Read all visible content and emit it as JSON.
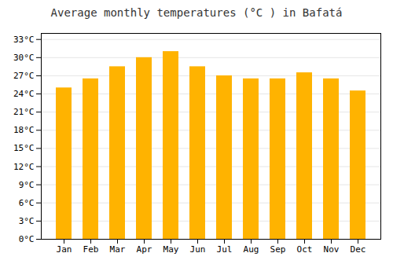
{
  "chart_data": {
    "type": "bar",
    "title": "Average monthly temperatures (°C ) in Bafatá",
    "categories": [
      "Jan",
      "Feb",
      "Mar",
      "Apr",
      "May",
      "Jun",
      "Jul",
      "Aug",
      "Sep",
      "Oct",
      "Nov",
      "Dec"
    ],
    "values": [
      25.0,
      26.5,
      28.5,
      30.0,
      31.0,
      28.5,
      27.0,
      26.5,
      26.5,
      27.5,
      26.5,
      24.5
    ],
    "color": "#FFB300",
    "ylim": [
      0,
      34
    ],
    "yticks": [
      {
        "value": 0,
        "label": "0°C"
      },
      {
        "value": 3,
        "label": "3°C"
      },
      {
        "value": 6,
        "label": "6°C"
      },
      {
        "value": 9,
        "label": "9°C"
      },
      {
        "value": 12,
        "label": "12°C"
      },
      {
        "value": 15,
        "label": "15°C"
      },
      {
        "value": 18,
        "label": "18°C"
      },
      {
        "value": 21,
        "label": "21°C"
      },
      {
        "value": 24,
        "label": "24°C"
      },
      {
        "value": 27,
        "label": "27°C"
      },
      {
        "value": 30,
        "label": "30°C"
      },
      {
        "value": 33,
        "label": "33°C"
      }
    ],
    "grid": true
  }
}
